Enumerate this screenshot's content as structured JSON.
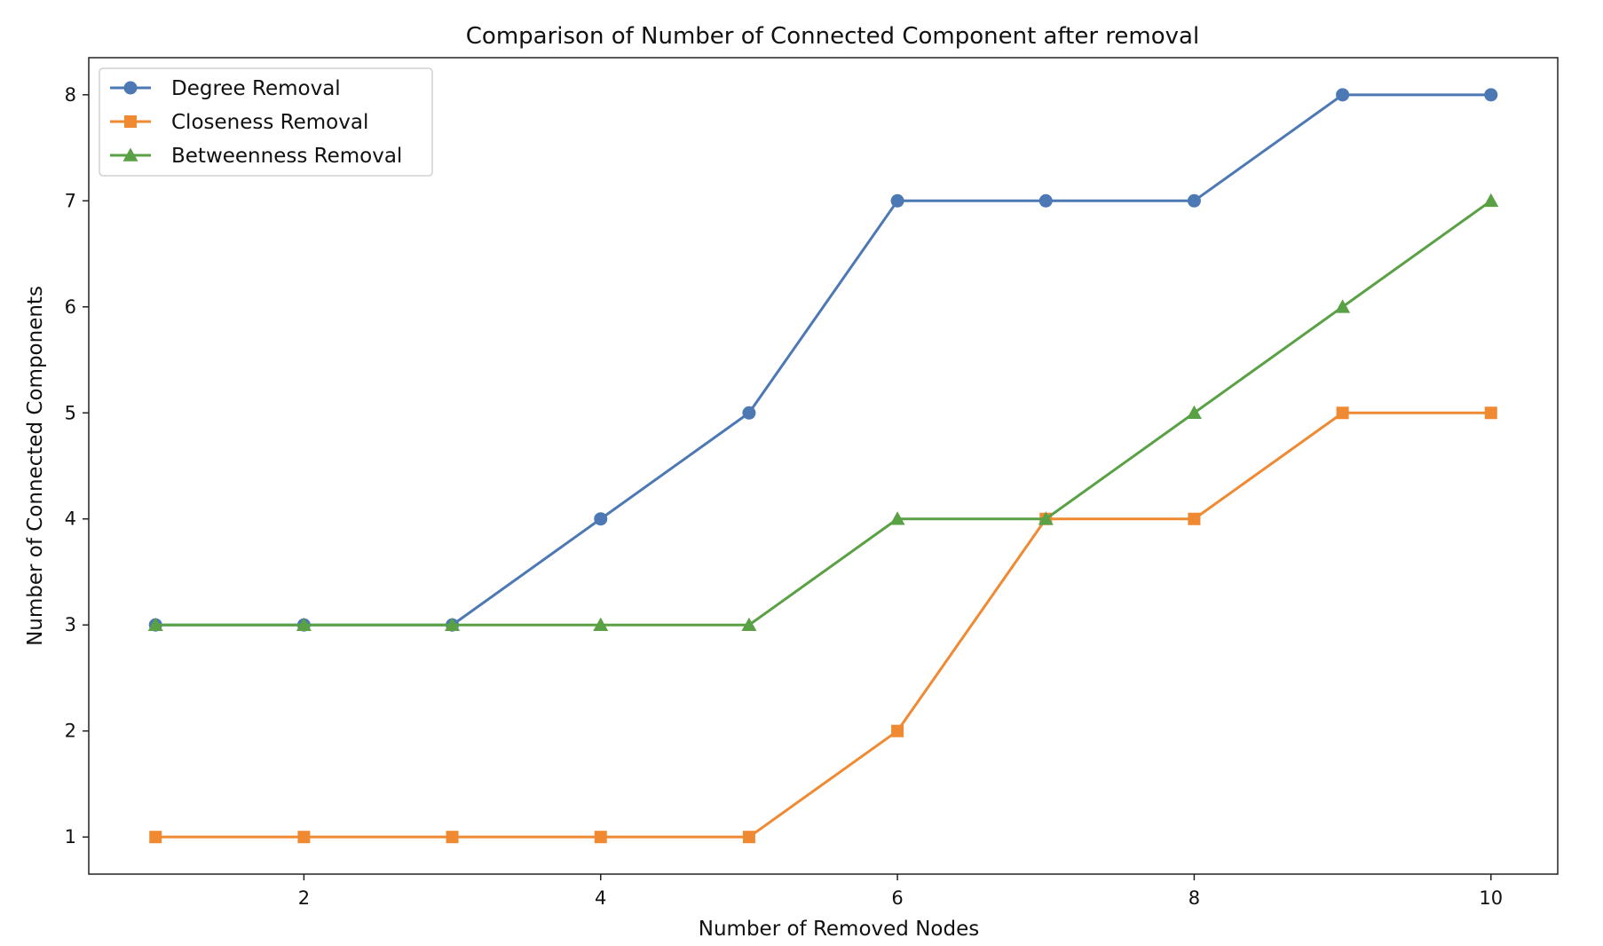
{
  "chart_data": {
    "type": "line",
    "title": "Comparison of Number of Connected Component after removal",
    "xlabel": "Number of Removed Nodes",
    "ylabel": "Number of Connected Components",
    "x": [
      1,
      2,
      3,
      4,
      5,
      6,
      7,
      8,
      9,
      10
    ],
    "xlim": [
      0.55,
      10.45
    ],
    "ylim": [
      0.65,
      8.35
    ],
    "xticks": [
      2,
      4,
      6,
      8,
      10
    ],
    "yticks": [
      1,
      2,
      3,
      4,
      5,
      6,
      7,
      8
    ],
    "grid": false,
    "legend_position": "top-left",
    "series": [
      {
        "name": "Degree Removal",
        "values": [
          3,
          3,
          3,
          4,
          5,
          7,
          7,
          7,
          8,
          8
        ],
        "color": "#4c78b4",
        "marker": "circle"
      },
      {
        "name": "Closeness Removal",
        "values": [
          1,
          1,
          1,
          1,
          1,
          2,
          4,
          4,
          5,
          5
        ],
        "color": "#ef8a32",
        "marker": "square"
      },
      {
        "name": "Betweenness Removal",
        "values": [
          3,
          3,
          3,
          3,
          3,
          4,
          4,
          5,
          6,
          7
        ],
        "color": "#5aa146",
        "marker": "triangle"
      }
    ]
  }
}
